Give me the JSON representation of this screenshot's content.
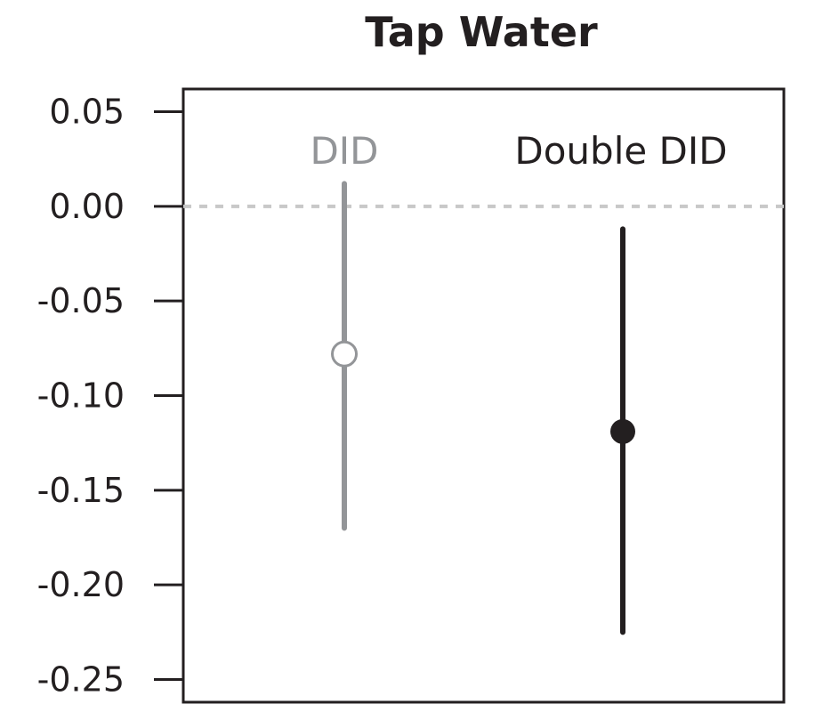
{
  "chart_data": {
    "type": "point-range",
    "title": "Tap Water",
    "xlabel": "",
    "ylabel": "",
    "ylim": [
      -0.262,
      0.062
    ],
    "yticks": [
      0.05,
      0.0,
      -0.05,
      -0.1,
      -0.15,
      -0.2,
      -0.25
    ],
    "ytick_labels": [
      "0.05",
      "0.00",
      "-0.05",
      "-0.10",
      "-0.15",
      "-0.20",
      "-0.25"
    ],
    "reference_line": {
      "y": 0.0,
      "style": "dotted",
      "color": "#c8c8c8"
    },
    "grid": false,
    "series": [
      {
        "name": "DID",
        "estimate": -0.078,
        "lower": -0.17,
        "upper": 0.012,
        "color": "#939598",
        "marker": "open-circle"
      },
      {
        "name": "Double DID",
        "estimate": -0.119,
        "lower": -0.225,
        "upper": -0.012,
        "color": "#231f20",
        "marker": "filled-circle"
      }
    ]
  }
}
